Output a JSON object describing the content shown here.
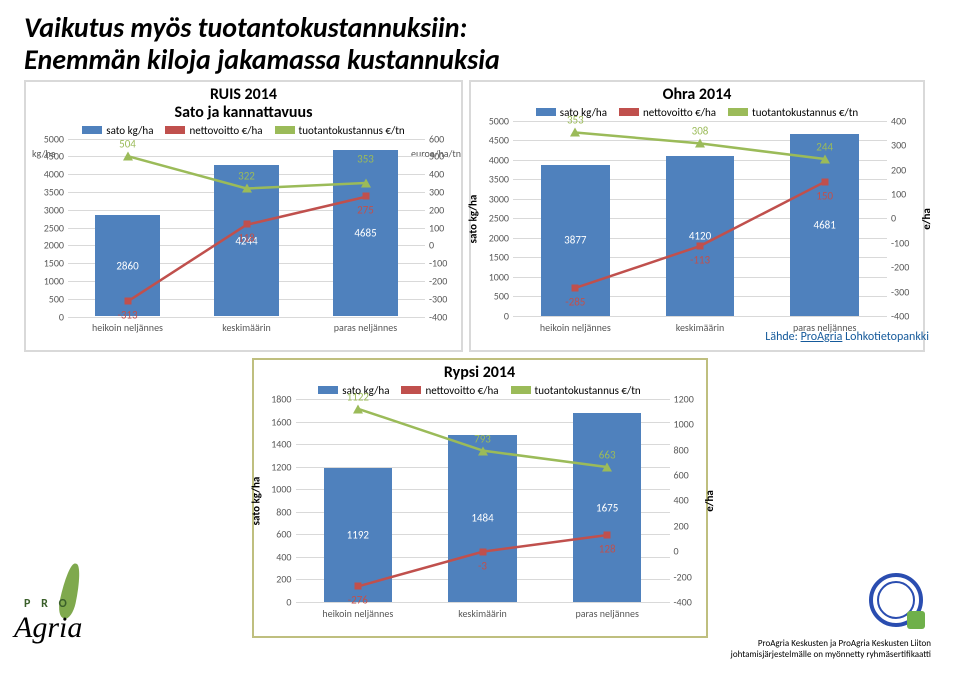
{
  "heading_line1": "Vaikutus myös tuotantokustannuksiin:",
  "heading_line2": "Enemmän kiloja jakamassa kustannuksia",
  "source_label": "Lähde: ",
  "source_link": "ProAgria",
  "source_rest": " Lohkotietopankki",
  "footer_line1": "ProAgria Keskusten ja ProAgria Keskusten Liiton",
  "footer_line2": "johtamisjärjestelmälle on myönnetty ryhmäsertifikaatti",
  "logo_pro": "P R O",
  "logo_agria": "Agria",
  "colors": {
    "bar": "#4f81bd",
    "net": "#c0504d",
    "cost": "#9bbb59",
    "grid": "#d9d9d9",
    "axis": "#595959",
    "bg": "#ffffff",
    "link": "#155a9b"
  },
  "common": {
    "categories": [
      "heikoin neljännes",
      "keskimäärin",
      "paras neljännes"
    ],
    "legend": [
      "sato kg/ha",
      "nettovoitto €/ha",
      "tuotantokustannus €/tn"
    ]
  },
  "chart1": {
    "title": "RUIS 2014\nSato ja kannattavuus",
    "left_label": "kg/ha",
    "right_label": "euroa/ha/tn",
    "yl": {
      "min": 0,
      "max": 5000,
      "step": 500
    },
    "yr": {
      "min": -400,
      "max": 600,
      "step": 100
    },
    "bars": [
      2860,
      4244,
      4685
    ],
    "net": [
      -313,
      118,
      275
    ],
    "cost": [
      504,
      322,
      353
    ],
    "cost_lbl_y_override": [
      null,
      null,
      420
    ]
  },
  "chart2": {
    "title": "Ohra 2014",
    "left_label": "sato kg/ha",
    "right_label": "e/ha",
    "yl": {
      "min": 0,
      "max": 5000,
      "step": 500
    },
    "yr": {
      "min": -400,
      "max": 400,
      "step": 100
    },
    "bars": [
      3877,
      4120,
      4681
    ],
    "net": [
      -285,
      -113,
      150
    ],
    "cost": [
      353,
      308,
      244
    ]
  },
  "chart3": {
    "title": "Rypsi 2014",
    "left_label": "sato kg/ha",
    "right_label": "e/ha",
    "yl": {
      "min": 0,
      "max": 1800,
      "step": 200
    },
    "yr": {
      "min": -400,
      "max": 1200,
      "step": 200
    },
    "bars": [
      1192,
      1484,
      1675
    ],
    "net": [
      -276,
      -3,
      128
    ],
    "cost": [
      1122,
      793,
      663
    ]
  }
}
